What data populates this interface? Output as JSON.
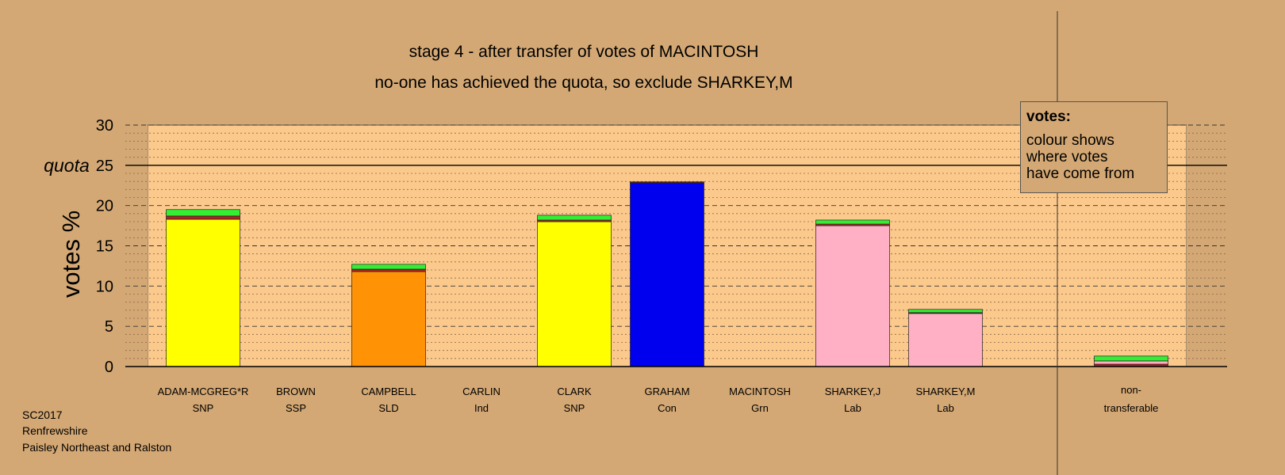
{
  "chart_data": {
    "type": "bar",
    "stacked": true,
    "title": "stage 4 - after transfer of votes of MACINTOSH",
    "subtitle": "no-one has achieved the quota, so exclude SHARKEY,M",
    "ylabel": "votes %",
    "ylim": [
      0,
      30
    ],
    "yticks": [
      0,
      5,
      10,
      15,
      20,
      25,
      30
    ],
    "quota": 25,
    "quota_label": "quota",
    "grid": "dotted minor, dashed major",
    "categories": [
      {
        "name": "ADAM-MCGREG*R",
        "party": "SNP"
      },
      {
        "name": "BROWN",
        "party": "SSP"
      },
      {
        "name": "CAMPBELL",
        "party": "SLD"
      },
      {
        "name": "CARLIN",
        "party": "Ind"
      },
      {
        "name": "CLARK",
        "party": "SNP"
      },
      {
        "name": "GRAHAM",
        "party": "Con"
      },
      {
        "name": "MACINTOSH",
        "party": "Grn"
      },
      {
        "name": "SHARKEY,J",
        "party": "Lab"
      },
      {
        "name": "SHARKEY,M",
        "party": "Lab"
      }
    ],
    "nontransferable_label": [
      "non-",
      "transferable"
    ],
    "segments": [
      [
        {
          "value": 18.3,
          "color": "#ffff00"
        },
        {
          "value": 0.4,
          "color": "#b22222"
        },
        {
          "value": 0.8,
          "color": "#33ee33"
        }
      ],
      [],
      [
        {
          "value": 11.8,
          "color": "#ff9305"
        },
        {
          "value": 0.3,
          "color": "#b22222"
        },
        {
          "value": 0.6,
          "color": "#33ee33"
        }
      ],
      [],
      [
        {
          "value": 18.0,
          "color": "#ffff00"
        },
        {
          "value": 0.2,
          "color": "#b22222"
        },
        {
          "value": 0.6,
          "color": "#33ee33"
        }
      ],
      [
        {
          "value": 22.8,
          "color": "#0000ee"
        },
        {
          "value": 0.1,
          "color": "#b22222"
        },
        {
          "value": 0.05,
          "color": "#33ee33"
        }
      ],
      [],
      [
        {
          "value": 17.5,
          "color": "#ffb0c4"
        },
        {
          "value": 0.2,
          "color": "#b22222"
        },
        {
          "value": 0.5,
          "color": "#33ee33"
        }
      ],
      [
        {
          "value": 6.6,
          "color": "#ffb0c4"
        },
        {
          "value": 0.1,
          "color": "#b22222"
        },
        {
          "value": 0.4,
          "color": "#33ee33"
        }
      ]
    ],
    "nontransferable_segments": [
      {
        "value": 0.3,
        "color": "#b22222"
      },
      {
        "value": 0.4,
        "color": "#ffb0c4"
      },
      {
        "value": 0.6,
        "color": "#33ee33"
      }
    ],
    "legend": {
      "title": "votes:",
      "lines": [
        "colour shows",
        "where votes",
        "have come from"
      ]
    }
  },
  "footer": {
    "line1": "SC2017",
    "line2": "Renfrewshire",
    "line3": "Paisley Northeast and Ralston"
  },
  "colors": {
    "background": "#d4a874",
    "plot_background": "#fcc98c"
  }
}
